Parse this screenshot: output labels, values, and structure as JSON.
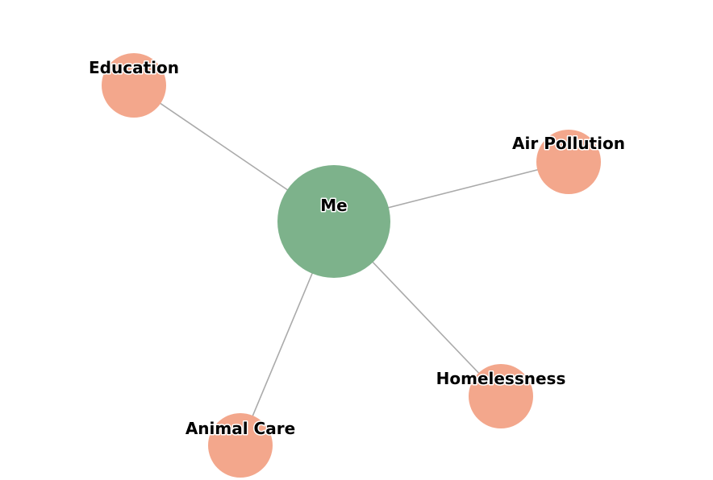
{
  "graph": {
    "center": {
      "label": "Me",
      "color": "#7db28b"
    },
    "interests": [
      {
        "label": "Education",
        "color": "#f3a78c"
      },
      {
        "label": "Air Pollution",
        "color": "#f3a78c"
      },
      {
        "label": "Homelessness",
        "color": "#f3a78c"
      },
      {
        "label": "Animal Care",
        "color": "#f3a78c"
      }
    ],
    "edge_color": "#aaaaaa"
  }
}
